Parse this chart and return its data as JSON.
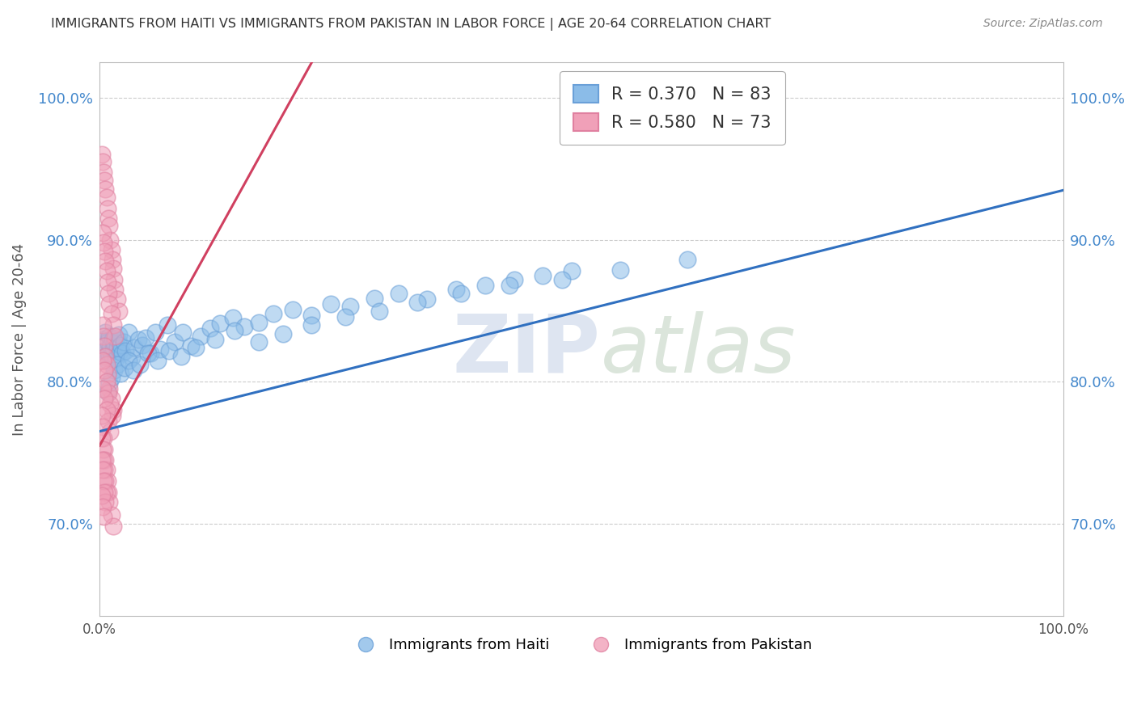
{
  "title": "IMMIGRANTS FROM HAITI VS IMMIGRANTS FROM PAKISTAN IN LABOR FORCE | AGE 20-64 CORRELATION CHART",
  "source": "Source: ZipAtlas.com",
  "ylabel": "In Labor Force | Age 20-64",
  "xlim": [
    0.0,
    1.0
  ],
  "ylim": [
    0.635,
    1.025
  ],
  "ytick_values": [
    0.7,
    0.8,
    0.9,
    1.0
  ],
  "legend_haiti_r": "R = 0.370",
  "legend_haiti_n": "N = 83",
  "legend_pakistan_r": "R = 0.580",
  "legend_pakistan_n": "N = 73",
  "haiti_color": "#8bbce8",
  "haiti_edge_color": "#6aa0d8",
  "pakistan_color": "#f0a0b8",
  "pakistan_edge_color": "#e080a0",
  "haiti_line_color": "#3070c0",
  "pakistan_line_color": "#d04060",
  "tick_color": "#4488cc",
  "grid_color": "#cccccc",
  "background_color": "#ffffff",
  "haiti_trendline_x": [
    0.0,
    1.0
  ],
  "haiti_trendline_y": [
    0.765,
    0.935
  ],
  "pakistan_trendline_x": [
    0.0,
    0.22
  ],
  "pakistan_trendline_y": [
    0.755,
    1.025
  ],
  "haiti_x": [
    0.002,
    0.004,
    0.005,
    0.006,
    0.007,
    0.008,
    0.009,
    0.01,
    0.011,
    0.012,
    0.013,
    0.014,
    0.015,
    0.016,
    0.017,
    0.018,
    0.019,
    0.02,
    0.021,
    0.022,
    0.023,
    0.025,
    0.027,
    0.03,
    0.033,
    0.036,
    0.04,
    0.044,
    0.048,
    0.053,
    0.058,
    0.063,
    0.07,
    0.078,
    0.086,
    0.095,
    0.105,
    0.115,
    0.125,
    0.138,
    0.15,
    0.165,
    0.18,
    0.2,
    0.22,
    0.24,
    0.26,
    0.285,
    0.31,
    0.34,
    0.37,
    0.4,
    0.43,
    0.46,
    0.49,
    0.008,
    0.01,
    0.012,
    0.015,
    0.018,
    0.022,
    0.026,
    0.03,
    0.035,
    0.042,
    0.05,
    0.06,
    0.072,
    0.085,
    0.1,
    0.12,
    0.14,
    0.165,
    0.19,
    0.22,
    0.255,
    0.29,
    0.33,
    0.375,
    0.425,
    0.48,
    0.54,
    0.61
  ],
  "haiti_y": [
    0.83,
    0.818,
    0.822,
    0.835,
    0.815,
    0.828,
    0.82,
    0.832,
    0.825,
    0.819,
    0.83,
    0.823,
    0.827,
    0.831,
    0.816,
    0.824,
    0.829,
    0.833,
    0.821,
    0.826,
    0.82,
    0.828,
    0.822,
    0.835,
    0.817,
    0.824,
    0.83,
    0.826,
    0.831,
    0.82,
    0.835,
    0.823,
    0.84,
    0.828,
    0.835,
    0.825,
    0.832,
    0.838,
    0.841,
    0.845,
    0.839,
    0.842,
    0.848,
    0.851,
    0.847,
    0.855,
    0.853,
    0.859,
    0.862,
    0.858,
    0.865,
    0.868,
    0.872,
    0.875,
    0.878,
    0.793,
    0.799,
    0.803,
    0.808,
    0.812,
    0.806,
    0.81,
    0.815,
    0.808,
    0.812,
    0.82,
    0.815,
    0.822,
    0.818,
    0.824,
    0.83,
    0.836,
    0.828,
    0.834,
    0.84,
    0.846,
    0.85,
    0.856,
    0.862,
    0.868,
    0.872,
    0.879,
    0.886
  ],
  "pakistan_x": [
    0.002,
    0.003,
    0.004,
    0.005,
    0.006,
    0.007,
    0.008,
    0.009,
    0.01,
    0.011,
    0.012,
    0.013,
    0.014,
    0.015,
    0.016,
    0.018,
    0.02,
    0.003,
    0.004,
    0.005,
    0.006,
    0.007,
    0.008,
    0.009,
    0.01,
    0.012,
    0.014,
    0.016,
    0.003,
    0.004,
    0.005,
    0.006,
    0.007,
    0.008,
    0.01,
    0.012,
    0.014,
    0.003,
    0.005,
    0.007,
    0.009,
    0.011,
    0.013,
    0.003,
    0.005,
    0.007,
    0.009,
    0.011,
    0.002,
    0.003,
    0.004,
    0.005,
    0.006,
    0.007,
    0.008,
    0.009,
    0.01,
    0.012,
    0.014,
    0.002,
    0.003,
    0.004,
    0.005,
    0.006,
    0.007,
    0.002,
    0.003,
    0.004,
    0.005,
    0.006,
    0.002,
    0.003,
    0.004
  ],
  "pakistan_y": [
    0.96,
    0.955,
    0.948,
    0.942,
    0.936,
    0.93,
    0.922,
    0.915,
    0.91,
    0.9,
    0.893,
    0.886,
    0.88,
    0.872,
    0.865,
    0.858,
    0.85,
    0.905,
    0.898,
    0.892,
    0.885,
    0.878,
    0.87,
    0.862,
    0.855,
    0.848,
    0.84,
    0.832,
    0.84,
    0.832,
    0.825,
    0.818,
    0.812,
    0.805,
    0.795,
    0.788,
    0.78,
    0.815,
    0.808,
    0.8,
    0.792,
    0.784,
    0.776,
    0.795,
    0.788,
    0.78,
    0.772,
    0.765,
    0.776,
    0.768,
    0.76,
    0.752,
    0.745,
    0.738,
    0.73,
    0.722,
    0.715,
    0.706,
    0.698,
    0.76,
    0.752,
    0.745,
    0.738,
    0.73,
    0.722,
    0.745,
    0.738,
    0.73,
    0.722,
    0.715,
    0.72,
    0.712,
    0.705
  ]
}
